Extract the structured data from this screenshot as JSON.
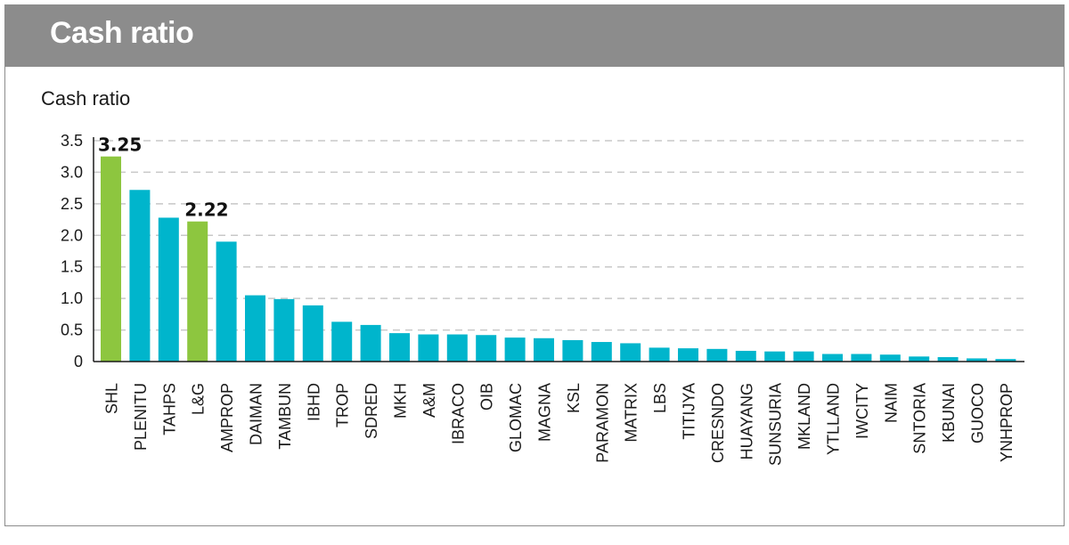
{
  "header": {
    "title": "Cash ratio"
  },
  "colors": {
    "highlight": "#8dc63f",
    "bar": "#00b5cc",
    "header_bg": "#8c8c8c",
    "grid": "#c8c8c8"
  },
  "chart_data": {
    "type": "bar",
    "title": "",
    "ylabel": "Cash ratio",
    "xlabel": "",
    "ylim": [
      0,
      3.5
    ],
    "yticks": [
      "0",
      "0.5",
      "1.0",
      "1.5",
      "2.0",
      "2.5",
      "3.0",
      "3.5"
    ],
    "grid": true,
    "categories": [
      "SHL",
      "PLENITU",
      "TAHPS",
      "L&G",
      "AMPROP",
      "DAIMAN",
      "TAMBUN",
      "IBHD",
      "TROP",
      "SDRED",
      "MKH",
      "A&M",
      "IBRACO",
      "OIB",
      "GLOMAC",
      "MAGNA",
      "KSL",
      "PARAMON",
      "MATRIX",
      "LBS",
      "TITIJYA",
      "CRESNDO",
      "HUAYANG",
      "SUNSURIA",
      "MKLAND",
      "YTLLAND",
      "IWCITY",
      "NAIM",
      "SNTORIA",
      "KBUNAI",
      "GUOCO",
      "YNHPROP"
    ],
    "values": [
      3.25,
      2.72,
      2.28,
      2.22,
      1.9,
      1.05,
      0.99,
      0.89,
      0.63,
      0.58,
      0.45,
      0.43,
      0.43,
      0.42,
      0.38,
      0.37,
      0.34,
      0.31,
      0.29,
      0.22,
      0.21,
      0.2,
      0.17,
      0.16,
      0.16,
      0.12,
      0.12,
      0.11,
      0.08,
      0.07,
      0.05,
      0.04
    ],
    "highlighted": [
      "SHL",
      "L&G"
    ],
    "data_labels": [
      {
        "category": "SHL",
        "text": "3.25"
      },
      {
        "category": "L&G",
        "text": "2.22"
      }
    ]
  }
}
